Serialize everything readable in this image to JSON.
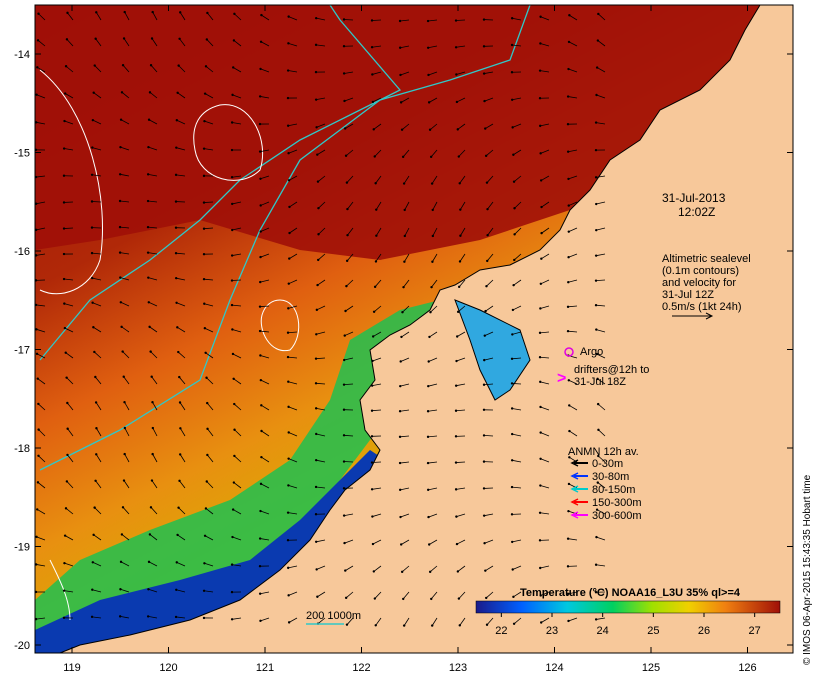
{
  "map": {
    "date": "31-Jul-2013",
    "time": "12:02Z",
    "altimetry_lines": [
      "Altimetric sealevel",
      "(0.1m contours)",
      "and velocity for",
      "31-Jul 12Z",
      "0.5m/s (1kt 24h)"
    ],
    "argo_label": "Argo",
    "drifters_lines": [
      "drifters@12h to",
      "31-Jul 18Z"
    ],
    "anmn_title": "ANMN 12h av.",
    "anmn_legend": [
      {
        "label": "0-30m",
        "color": "#000000"
      },
      {
        "label": "30-80m",
        "color": "#0033ff"
      },
      {
        "label": "80-150m",
        "color": "#00cccc"
      },
      {
        "label": "150-300m",
        "color": "#ff0000"
      },
      {
        "label": "300-600m",
        "color": "#ff00ff"
      }
    ],
    "isobath_label": "200  1000m",
    "colorbar_title": "Temperature (°C) NOAA16_L3U 35% ql>=4",
    "colorbar_ticks": [
      "22",
      "23",
      "24",
      "25",
      "26",
      "27"
    ],
    "colorbar_range": [
      21.5,
      27.5
    ],
    "lon_ticks": [
      "119",
      "120",
      "121",
      "122",
      "123",
      "124",
      "125",
      "126"
    ],
    "lat_ticks": [
      "-14",
      "-15",
      "-16",
      "-17",
      "-18",
      "-19",
      "-20"
    ],
    "credit": "© IMOS 06-Apr-2015 15:43:35 Hobart time",
    "colors": {
      "land": "#f7c89a",
      "sst_warm": "#a01008",
      "sst_mid": "#e08010",
      "sst_cool": "#00d050",
      "sst_cold": "#0a1a8a",
      "contour_200": "#30c8c8",
      "argo": "#e000e0"
    }
  }
}
